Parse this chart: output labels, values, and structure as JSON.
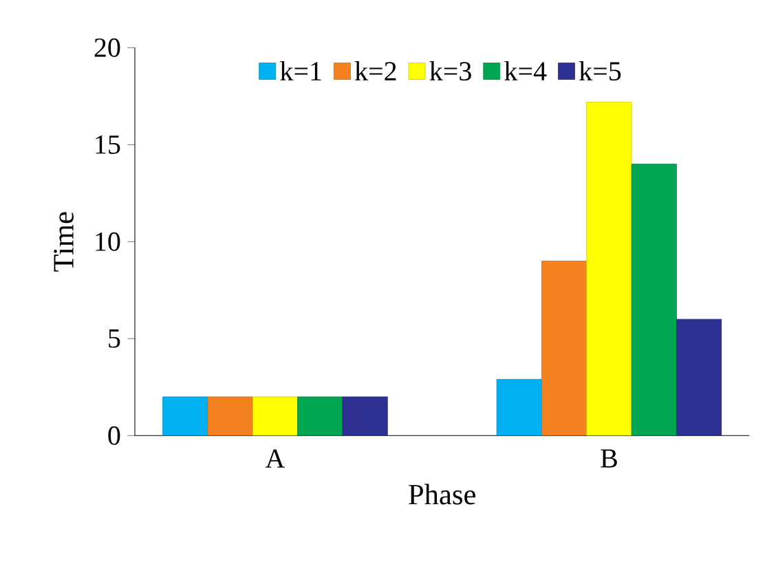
{
  "chart_data": {
    "type": "bar",
    "xlabel": "Phase",
    "ylabel": "Time",
    "categories": [
      "A",
      "B"
    ],
    "series": [
      {
        "name": "k=1",
        "color": "#00b0f0",
        "values": [
          2,
          2.9
        ]
      },
      {
        "name": "k=2",
        "color": "#f58220",
        "values": [
          2,
          9
        ]
      },
      {
        "name": "k=3",
        "color": "#ffff00",
        "values": [
          2,
          17.2
        ]
      },
      {
        "name": "k=4",
        "color": "#00a651",
        "values": [
          2,
          14
        ]
      },
      {
        "name": "k=5",
        "color": "#2e3192",
        "values": [
          2,
          6
        ]
      }
    ],
    "ylim": [
      0,
      20
    ],
    "yticks": [
      0,
      5,
      10,
      15,
      20
    ],
    "legend": "top",
    "grid": false
  }
}
